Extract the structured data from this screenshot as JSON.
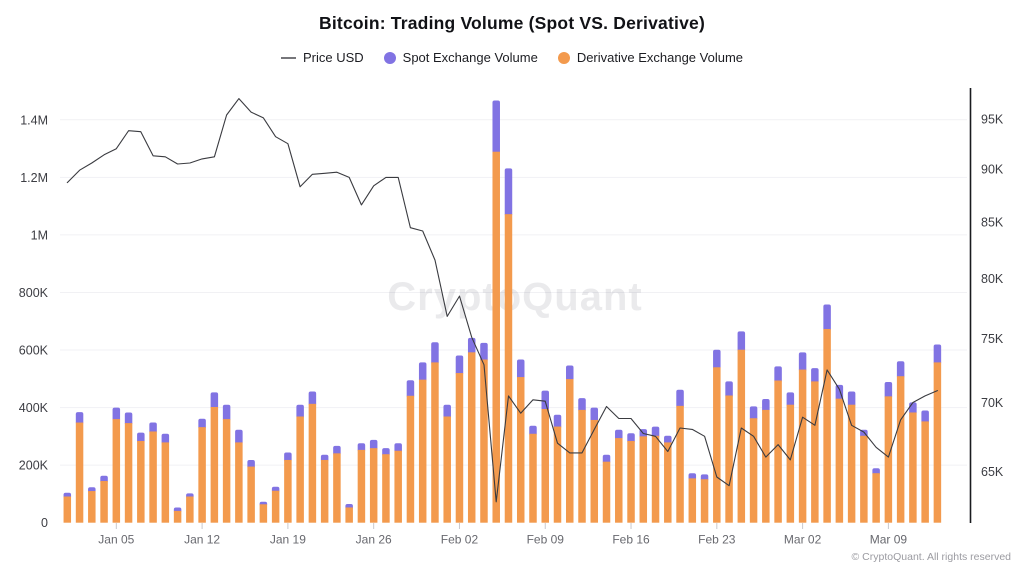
{
  "header": {
    "title": "Bitcoin: Trading Volume (Spot VS. Derivative)"
  },
  "legend": [
    {
      "label": "Price USD",
      "marker": "line",
      "color": "#76767a"
    },
    {
      "label": "Spot Exchange Volume",
      "marker": "circle",
      "color": "#8173E3"
    },
    {
      "label": "Derivative Exchange Volume",
      "marker": "circle",
      "color": "#F39A4D"
    }
  ],
  "watermark": "CryptoQuant",
  "footer": {
    "copyright": "© CryptoQuant. All rights reserved"
  },
  "chart_data": {
    "type": "bar",
    "subtype": "stacked-bars-with-line-overlay",
    "title": "Bitcoin: Trading Volume (Spot VS. Derivative)",
    "grid": "horizontal-only",
    "legend_position": "top-center",
    "categories": [
      "Jan 01",
      "Jan 02",
      "Jan 03",
      "Jan 04",
      "Jan 05",
      "Jan 06",
      "Jan 07",
      "Jan 08",
      "Jan 09",
      "Jan 10",
      "Jan 11",
      "Jan 12",
      "Jan 13",
      "Jan 14",
      "Jan 15",
      "Jan 16",
      "Jan 17",
      "Jan 18",
      "Jan 19",
      "Jan 20",
      "Jan 21",
      "Jan 22",
      "Jan 23",
      "Jan 24",
      "Jan 25",
      "Jan 26",
      "Jan 27",
      "Jan 28",
      "Jan 29",
      "Jan 30",
      "Jan 31",
      "Feb 01",
      "Feb 02",
      "Feb 03",
      "Feb 04",
      "Feb 05",
      "Feb 06",
      "Feb 07",
      "Feb 08",
      "Feb 09",
      "Feb 10",
      "Feb 11",
      "Feb 12",
      "Feb 13",
      "Feb 14",
      "Feb 15",
      "Feb 16",
      "Feb 17",
      "Feb 18",
      "Feb 19",
      "Feb 20",
      "Feb 21",
      "Feb 22",
      "Feb 23",
      "Feb 24",
      "Feb 25",
      "Feb 26",
      "Feb 27",
      "Feb 28",
      "Mar 01",
      "Mar 02",
      "Mar 03",
      "Mar 04",
      "Mar 05",
      "Mar 06",
      "Mar 07",
      "Mar 08",
      "Mar 09",
      "Mar 10",
      "Mar 11",
      "Mar 12",
      "Mar 13"
    ],
    "x_tick_labels": [
      {
        "index": 4,
        "label": "Jan 05"
      },
      {
        "index": 11,
        "label": "Jan 12"
      },
      {
        "index": 18,
        "label": "Jan 19"
      },
      {
        "index": 25,
        "label": "Jan 26"
      },
      {
        "index": 32,
        "label": "Feb 02"
      },
      {
        "index": 39,
        "label": "Feb 09"
      },
      {
        "index": 46,
        "label": "Feb 16"
      },
      {
        "index": 53,
        "label": "Feb 23"
      },
      {
        "index": 60,
        "label": "Mar 02"
      },
      {
        "index": 67,
        "label": "Mar 09"
      }
    ],
    "left_axis": {
      "unit": "volume (thousands)",
      "scale": "linear",
      "range_k": [
        0,
        1500
      ],
      "ticks": [
        {
          "value_k": 0,
          "label": "0"
        },
        {
          "value_k": 200,
          "label": "200K"
        },
        {
          "value_k": 400,
          "label": "400K"
        },
        {
          "value_k": 600,
          "label": "600K"
        },
        {
          "value_k": 800,
          "label": "800K"
        },
        {
          "value_k": 1000,
          "label": "1M"
        },
        {
          "value_k": 1200,
          "label": "1.2M"
        },
        {
          "value_k": 1400,
          "label": "1.4M"
        }
      ]
    },
    "right_axis": {
      "unit": "USD",
      "scale": "log",
      "range": [
        61500,
        97900
      ],
      "ticks": [
        {
          "value": 65000,
          "label": "65K"
        },
        {
          "value": 70000,
          "label": "70K"
        },
        {
          "value": 75000,
          "label": "75K"
        },
        {
          "value": 80000,
          "label": "80K"
        },
        {
          "value": 85000,
          "label": "85K"
        },
        {
          "value": 90000,
          "label": "90K"
        },
        {
          "value": 95000,
          "label": "95K"
        }
      ]
    },
    "series": [
      {
        "name": "Spot Exchange Volume",
        "type": "bar",
        "stack": "volume",
        "color": "#8173E3",
        "unit": "thousands",
        "values_k": [
          13,
          36,
          13,
          18,
          40,
          37,
          29,
          31,
          30,
          12,
          11,
          29,
          51,
          50,
          44,
          23,
          9,
          14,
          26,
          41,
          43,
          18,
          26,
          12,
          23,
          29,
          21,
          26,
          54,
          60,
          70,
          41,
          61,
          50,
          58,
          178,
          159,
          61,
          28,
          64,
          41,
          47,
          41,
          43,
          24,
          29,
          27,
          25,
          32,
          23,
          56,
          18,
          17,
          61,
          49,
          64,
          41,
          38,
          49,
          43,
          60,
          46,
          85,
          48,
          46,
          21,
          17,
          50,
          52,
          35,
          38,
          62
        ]
      },
      {
        "name": "Derivative Exchange Volume",
        "type": "bar",
        "stack": "volume",
        "color": "#F39A4D",
        "unit": "thousands",
        "values_k": [
          91,
          348,
          110,
          145,
          360,
          346,
          284,
          317,
          279,
          41,
          91,
          332,
          402,
          360,
          279,
          195,
          64,
          111,
          218,
          369,
          413,
          218,
          241,
          53,
          253,
          259,
          238,
          250,
          441,
          497,
          557,
          369,
          520,
          592,
          567,
          1289,
          1072,
          506,
          309,
          395,
          334,
          499,
          392,
          357,
          212,
          294,
          284,
          300,
          302,
          279,
          406,
          154,
          151,
          540,
          442,
          601,
          363,
          392,
          494,
          410,
          532,
          491,
          673,
          431,
          410,
          302,
          172,
          439,
          509,
          383,
          352,
          557
        ]
      },
      {
        "name": "Price USD",
        "type": "line",
        "axis": "right",
        "color": "#3a3b40",
        "unit": "USD",
        "values": [
          88700,
          89900,
          90600,
          91400,
          92000,
          93800,
          93700,
          91300,
          91200,
          90500,
          90600,
          91000,
          91200,
          95400,
          97100,
          95700,
          95100,
          93200,
          92500,
          88300,
          89500,
          89600,
          89700,
          89200,
          86600,
          88400,
          89200,
          89200,
          84500,
          84200,
          81600,
          76800,
          78500,
          75100,
          72900,
          62900,
          70500,
          69200,
          70200,
          70100,
          67000,
          66300,
          66300,
          68000,
          69700,
          68800,
          68800,
          67700,
          67500,
          66400,
          68100,
          68000,
          67500,
          64600,
          64000,
          68100,
          67500,
          66000,
          66900,
          65800,
          68900,
          68300,
          72500,
          71000,
          68300,
          67800,
          66700,
          66000,
          68700,
          70000,
          70500,
          70900
        ]
      }
    ]
  }
}
